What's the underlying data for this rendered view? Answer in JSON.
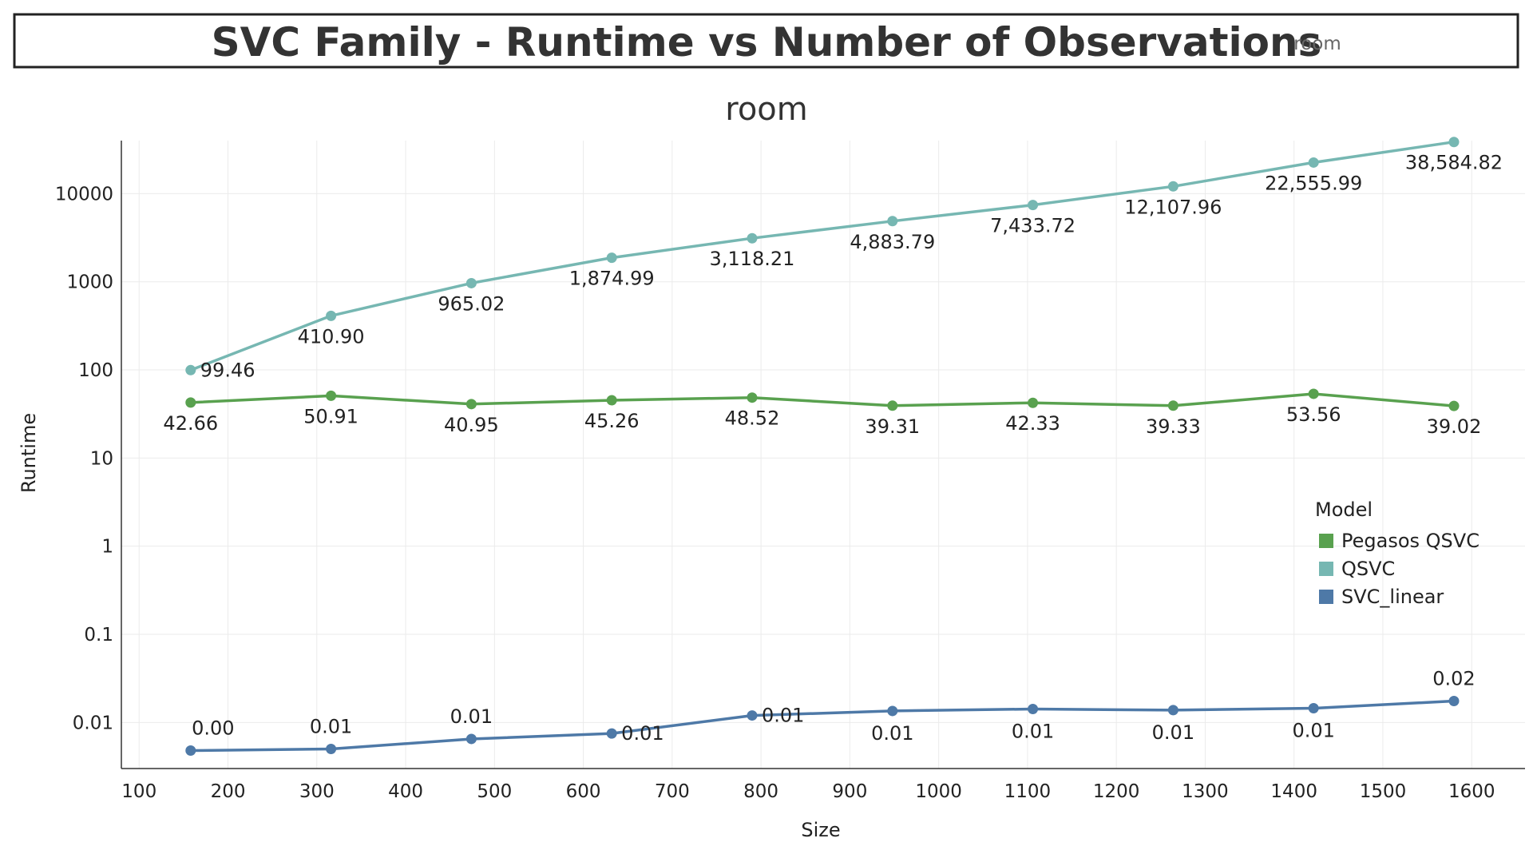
{
  "header": {
    "title": "SVC Family - Runtime vs Number of Observations",
    "filter_value": "room"
  },
  "chart_data": {
    "type": "line",
    "title": "room",
    "xlabel": "Size",
    "ylabel": "Runtime",
    "xlim": [
      80,
      1660
    ],
    "ylim": [
      0.003,
      40000
    ],
    "y_scale": "log",
    "x_ticks": [
      100,
      200,
      300,
      400,
      500,
      600,
      700,
      800,
      900,
      1000,
      1100,
      1200,
      1300,
      1400,
      1500,
      1600
    ],
    "y_ticks": [
      {
        "value": 0.01,
        "label": "0.01"
      },
      {
        "value": 0.1,
        "label": "0.1"
      },
      {
        "value": 1,
        "label": "1"
      },
      {
        "value": 10,
        "label": "10"
      },
      {
        "value": 100,
        "label": "100"
      },
      {
        "value": 1000,
        "label": "1000"
      },
      {
        "value": 10000,
        "label": "10000"
      }
    ],
    "grid": true,
    "legend": {
      "title": "Model",
      "position": "right"
    },
    "x": [
      158,
      316,
      474,
      632,
      790,
      948,
      1106,
      1264,
      1422,
      1580
    ],
    "series": [
      {
        "name": "Pegasos QSVC",
        "color": "#59a14f",
        "values": [
          42.66,
          50.91,
          40.95,
          45.26,
          48.52,
          39.31,
          42.33,
          39.33,
          53.56,
          39.02
        ],
        "labels": [
          "42.66",
          "50.91",
          "40.95",
          "45.26",
          "48.52",
          "39.31",
          "42.33",
          "39.33",
          "53.56",
          "39.02"
        ],
        "label_position": "below"
      },
      {
        "name": "QSVC",
        "color": "#76b7b2",
        "values": [
          99.46,
          410.9,
          965.02,
          1874.99,
          3118.21,
          4883.79,
          7433.72,
          12107.96,
          22555.99,
          38584.82
        ],
        "labels": [
          "99.46",
          "410.90",
          "965.02",
          "1,874.99",
          "3,118.21",
          "4,883.79",
          "7,433.72",
          "12,107.96",
          "22,555.99",
          "38,584.82"
        ],
        "label_position": "below"
      },
      {
        "name": "SVC_linear",
        "color": "#4e79a7",
        "values": [
          0.0048,
          0.005,
          0.0065,
          0.0075,
          0.012,
          0.0135,
          0.0142,
          0.0138,
          0.0145,
          0.0175
        ],
        "labels": [
          "0.00",
          "0.01",
          "0.01",
          "0.01",
          "0.01",
          "0.01",
          "0.01",
          "0.01",
          "0.01",
          "0.02"
        ],
        "label_position": "above"
      }
    ]
  }
}
